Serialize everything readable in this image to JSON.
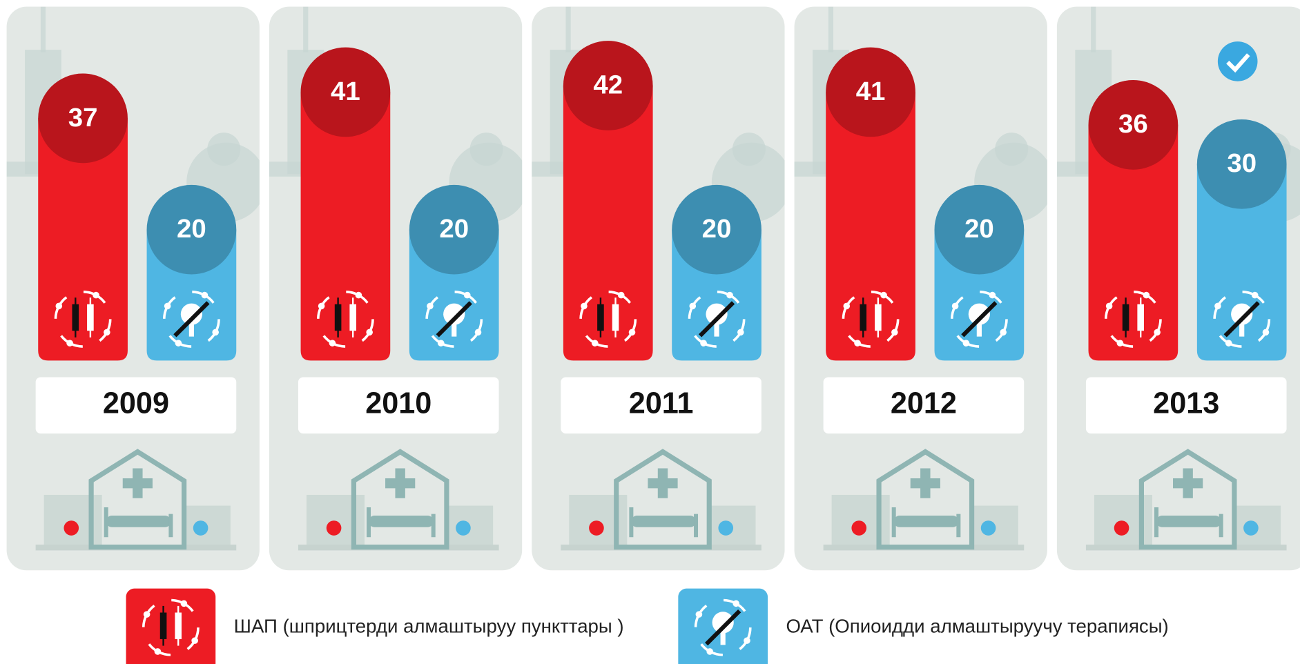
{
  "chart_data": {
    "type": "bar",
    "categories": [
      "2009",
      "2010",
      "2011",
      "2012",
      "2013"
    ],
    "series": [
      {
        "name": "ШАП (шприцтерди алмаштыруу пункттары )",
        "color": "#ed1c24",
        "values": [
          37,
          41,
          42,
          41,
          36
        ]
      },
      {
        "name": "ОАТ (Опиоидди алмаштыруучу терапиясы)",
        "color": "#4fb6e3",
        "values": [
          20,
          20,
          20,
          20,
          30
        ]
      }
    ]
  }
}
